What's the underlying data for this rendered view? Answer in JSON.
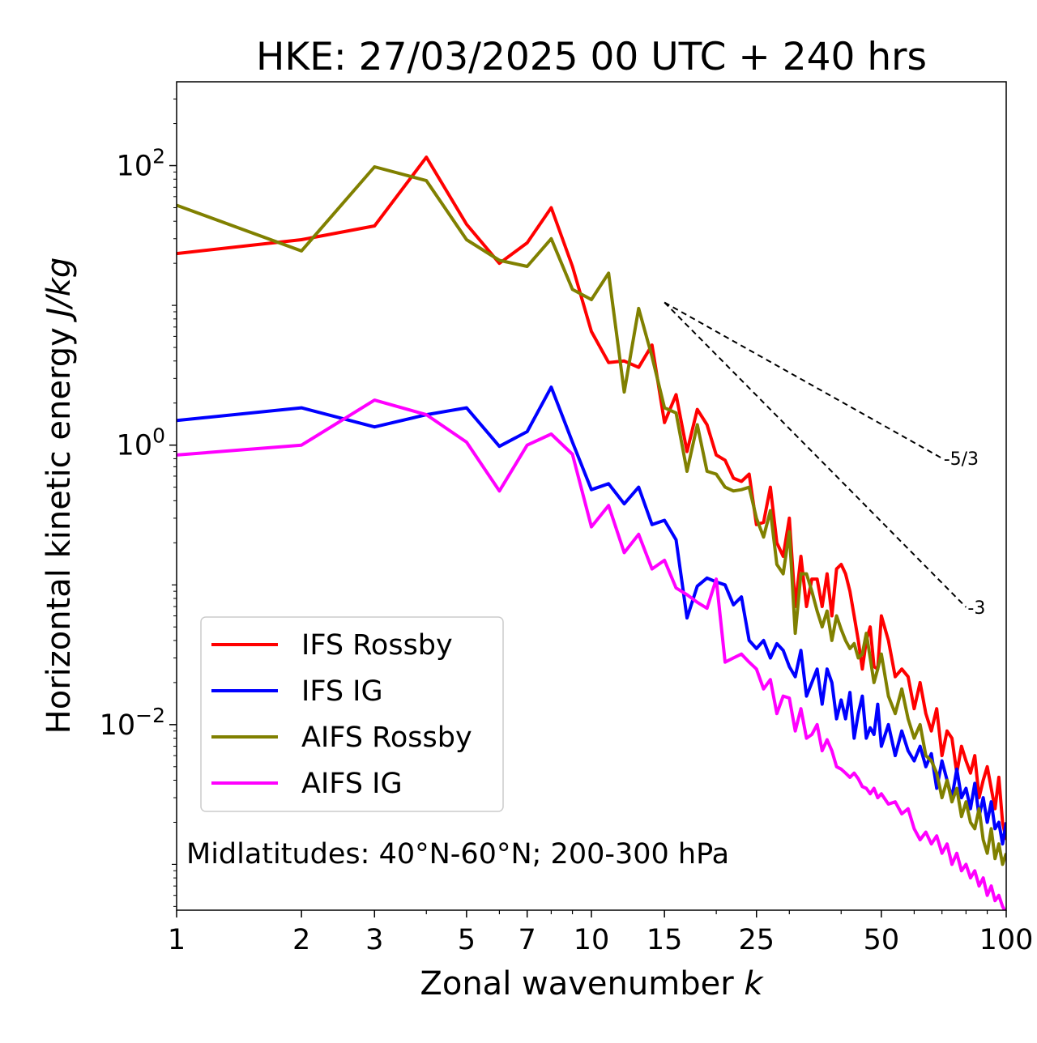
{
  "chart_data": {
    "type": "line",
    "title": "HKE: 27/03/2025 00 UTC + 240 hrs",
    "xlabel": "Zonal wavenumber k",
    "ylabel": "Horizontal kinetic energy J/kg",
    "xscale": "log",
    "yscale": "log",
    "xlim": [
      1,
      100
    ],
    "ylim": [
      0.00047,
      398
    ],
    "x_tick_labels": [
      "1",
      "2",
      "3",
      "5",
      "7",
      "10",
      "15",
      "25",
      "50",
      "100"
    ],
    "x_ticks": [
      1,
      2,
      3,
      5,
      7,
      10,
      15,
      25,
      50,
      100
    ],
    "y_tick_labels": [
      {
        "base": "10",
        "exp": "2"
      },
      {
        "base": "10",
        "exp": "0"
      },
      {
        "base": "10",
        "exp": "−2"
      }
    ],
    "y_ticks": [
      100,
      1,
      0.01
    ],
    "legend_position": "lower-left",
    "annotation": "Midlatitudes: 40°N-60°N; 200-300 hPa",
    "reference_slopes": [
      {
        "label": "-5/3",
        "slope": -1.6667,
        "x_start": 15,
        "y_start": 10.5,
        "x_end": 70
      },
      {
        "label": "-3",
        "slope": -3,
        "x_start": 15,
        "y_start": 10.5,
        "x_end": 80
      }
    ],
    "series": [
      {
        "name": "IFS Rossby",
        "color": "#ff0000",
        "x": [
          1,
          2,
          3,
          4,
          5,
          6,
          7,
          8,
          9,
          10,
          11,
          12,
          13,
          14,
          15,
          16,
          17,
          18,
          19,
          20,
          21,
          22,
          23,
          24,
          25,
          26,
          27,
          28,
          29,
          30,
          31,
          32,
          33,
          34,
          35,
          36,
          37,
          38,
          39,
          40,
          41,
          42,
          43,
          44,
          45,
          46,
          47,
          48,
          49,
          50,
          52,
          54,
          56,
          58,
          60,
          62,
          64,
          66,
          68,
          70,
          72,
          74,
          76,
          78,
          80,
          82,
          84,
          86,
          88,
          90,
          92,
          94,
          96,
          98,
          100
        ],
        "values": [
          23.5,
          29.5,
          37.0,
          115.0,
          38.0,
          20.0,
          28.0,
          50.0,
          19.0,
          6.5,
          3.9,
          4.0,
          3.6,
          5.2,
          1.45,
          2.3,
          0.9,
          1.8,
          1.4,
          0.85,
          0.78,
          0.58,
          0.55,
          0.62,
          0.27,
          0.28,
          0.5,
          0.2,
          0.16,
          0.3,
          0.07,
          0.16,
          0.07,
          0.11,
          0.11,
          0.07,
          0.12,
          0.06,
          0.13,
          0.14,
          0.12,
          0.09,
          0.06,
          0.04,
          0.025,
          0.04,
          0.05,
          0.026,
          0.025,
          0.06,
          0.04,
          0.022,
          0.025,
          0.022,
          0.013,
          0.02,
          0.012,
          0.009,
          0.013,
          0.006,
          0.009,
          0.008,
          0.0045,
          0.007,
          0.0055,
          0.0045,
          0.006,
          0.003,
          0.004,
          0.005,
          0.0035,
          0.0025,
          0.0042,
          0.002,
          0.0015
        ]
      },
      {
        "name": "IFS IG",
        "color": "#0000ff",
        "x": [
          1,
          2,
          3,
          4,
          5,
          6,
          7,
          8,
          9,
          10,
          11,
          12,
          13,
          14,
          15,
          16,
          17,
          18,
          19,
          20,
          21,
          22,
          23,
          24,
          25,
          26,
          27,
          28,
          29,
          30,
          31,
          32,
          33,
          34,
          35,
          36,
          37,
          38,
          39,
          40,
          41,
          42,
          43,
          44,
          45,
          46,
          47,
          48,
          49,
          50,
          52,
          54,
          56,
          58,
          60,
          62,
          64,
          66,
          68,
          70,
          72,
          74,
          76,
          78,
          80,
          82,
          84,
          86,
          88,
          90,
          92,
          94,
          96,
          98,
          100
        ],
        "values": [
          1.5,
          1.85,
          1.35,
          1.65,
          1.85,
          0.98,
          1.25,
          2.6,
          1.05,
          0.48,
          0.53,
          0.38,
          0.5,
          0.27,
          0.29,
          0.21,
          0.058,
          0.098,
          0.112,
          0.105,
          0.1,
          0.072,
          0.082,
          0.04,
          0.035,
          0.04,
          0.03,
          0.038,
          0.034,
          0.026,
          0.022,
          0.034,
          0.016,
          0.02,
          0.025,
          0.014,
          0.025,
          0.02,
          0.011,
          0.015,
          0.011,
          0.017,
          0.008,
          0.012,
          0.016,
          0.008,
          0.0095,
          0.0085,
          0.014,
          0.007,
          0.01,
          0.006,
          0.009,
          0.0065,
          0.0055,
          0.007,
          0.005,
          0.0062,
          0.0035,
          0.0055,
          0.004,
          0.003,
          0.0048,
          0.003,
          0.0035,
          0.0025,
          0.0038,
          0.0022,
          0.003,
          0.002,
          0.0028,
          0.0018,
          0.002,
          0.0014,
          0.002
        ]
      },
      {
        "name": "AIFS Rossby",
        "color": "#808000",
        "x": [
          1,
          2,
          3,
          4,
          5,
          6,
          7,
          8,
          9,
          10,
          11,
          12,
          13,
          14,
          15,
          16,
          17,
          18,
          19,
          20,
          21,
          22,
          23,
          24,
          25,
          26,
          27,
          28,
          29,
          30,
          31,
          32,
          33,
          34,
          35,
          36,
          37,
          38,
          39,
          40,
          41,
          42,
          43,
          44,
          45,
          46,
          47,
          48,
          49,
          50,
          52,
          54,
          56,
          58,
          60,
          62,
          64,
          66,
          68,
          70,
          72,
          74,
          76,
          78,
          80,
          82,
          84,
          86,
          88,
          90,
          92,
          94,
          96,
          98,
          100
        ],
        "values": [
          52.0,
          24.5,
          98.0,
          78.0,
          29.5,
          21.0,
          19.0,
          30.0,
          13.0,
          11.0,
          17.0,
          2.4,
          9.5,
          4.3,
          1.85,
          1.7,
          0.65,
          1.4,
          0.65,
          0.62,
          0.5,
          0.47,
          0.48,
          0.5,
          0.3,
          0.22,
          0.34,
          0.14,
          0.12,
          0.24,
          0.045,
          0.12,
          0.12,
          0.09,
          0.065,
          0.05,
          0.065,
          0.04,
          0.06,
          0.048,
          0.04,
          0.035,
          0.038,
          0.03,
          0.032,
          0.045,
          0.03,
          0.02,
          0.025,
          0.032,
          0.016,
          0.012,
          0.018,
          0.011,
          0.008,
          0.01,
          0.006,
          0.0055,
          0.0045,
          0.003,
          0.004,
          0.0028,
          0.0035,
          0.0022,
          0.0028,
          0.002,
          0.0018,
          0.0025,
          0.0015,
          0.0012,
          0.0018,
          0.0011,
          0.0014,
          0.001,
          0.0012
        ]
      },
      {
        "name": "AIFS IG",
        "color": "#ff00ff",
        "x": [
          1,
          2,
          3,
          4,
          5,
          6,
          7,
          8,
          9,
          10,
          11,
          12,
          13,
          14,
          15,
          16,
          17,
          18,
          19,
          20,
          21,
          22,
          23,
          24,
          25,
          26,
          27,
          28,
          29,
          30,
          31,
          32,
          33,
          34,
          35,
          36,
          37,
          38,
          39,
          40,
          41,
          42,
          43,
          44,
          45,
          46,
          47,
          48,
          49,
          50,
          52,
          54,
          56,
          58,
          60,
          62,
          64,
          66,
          68,
          70,
          72,
          74,
          76,
          78,
          80,
          82,
          84,
          86,
          88,
          90,
          92,
          94,
          96,
          98,
          100
        ],
        "values": [
          0.85,
          1.0,
          2.1,
          1.65,
          1.05,
          0.47,
          1.0,
          1.2,
          0.86,
          0.26,
          0.37,
          0.17,
          0.23,
          0.13,
          0.15,
          0.095,
          0.085,
          0.075,
          0.068,
          0.11,
          0.028,
          0.03,
          0.032,
          0.028,
          0.025,
          0.018,
          0.021,
          0.012,
          0.016,
          0.0155,
          0.009,
          0.013,
          0.008,
          0.0085,
          0.01,
          0.0065,
          0.0078,
          0.0065,
          0.005,
          0.0048,
          0.0045,
          0.0042,
          0.0045,
          0.0041,
          0.0036,
          0.0035,
          0.0032,
          0.0035,
          0.003,
          0.0032,
          0.0027,
          0.0028,
          0.0023,
          0.0025,
          0.0018,
          0.0015,
          0.0017,
          0.0014,
          0.0016,
          0.0012,
          0.0014,
          0.001,
          0.0012,
          0.0009,
          0.001,
          0.0008,
          0.0009,
          0.0007,
          0.0008,
          0.0006,
          0.0007,
          0.00055,
          0.0006,
          0.0005,
          0.00045
        ]
      }
    ]
  }
}
